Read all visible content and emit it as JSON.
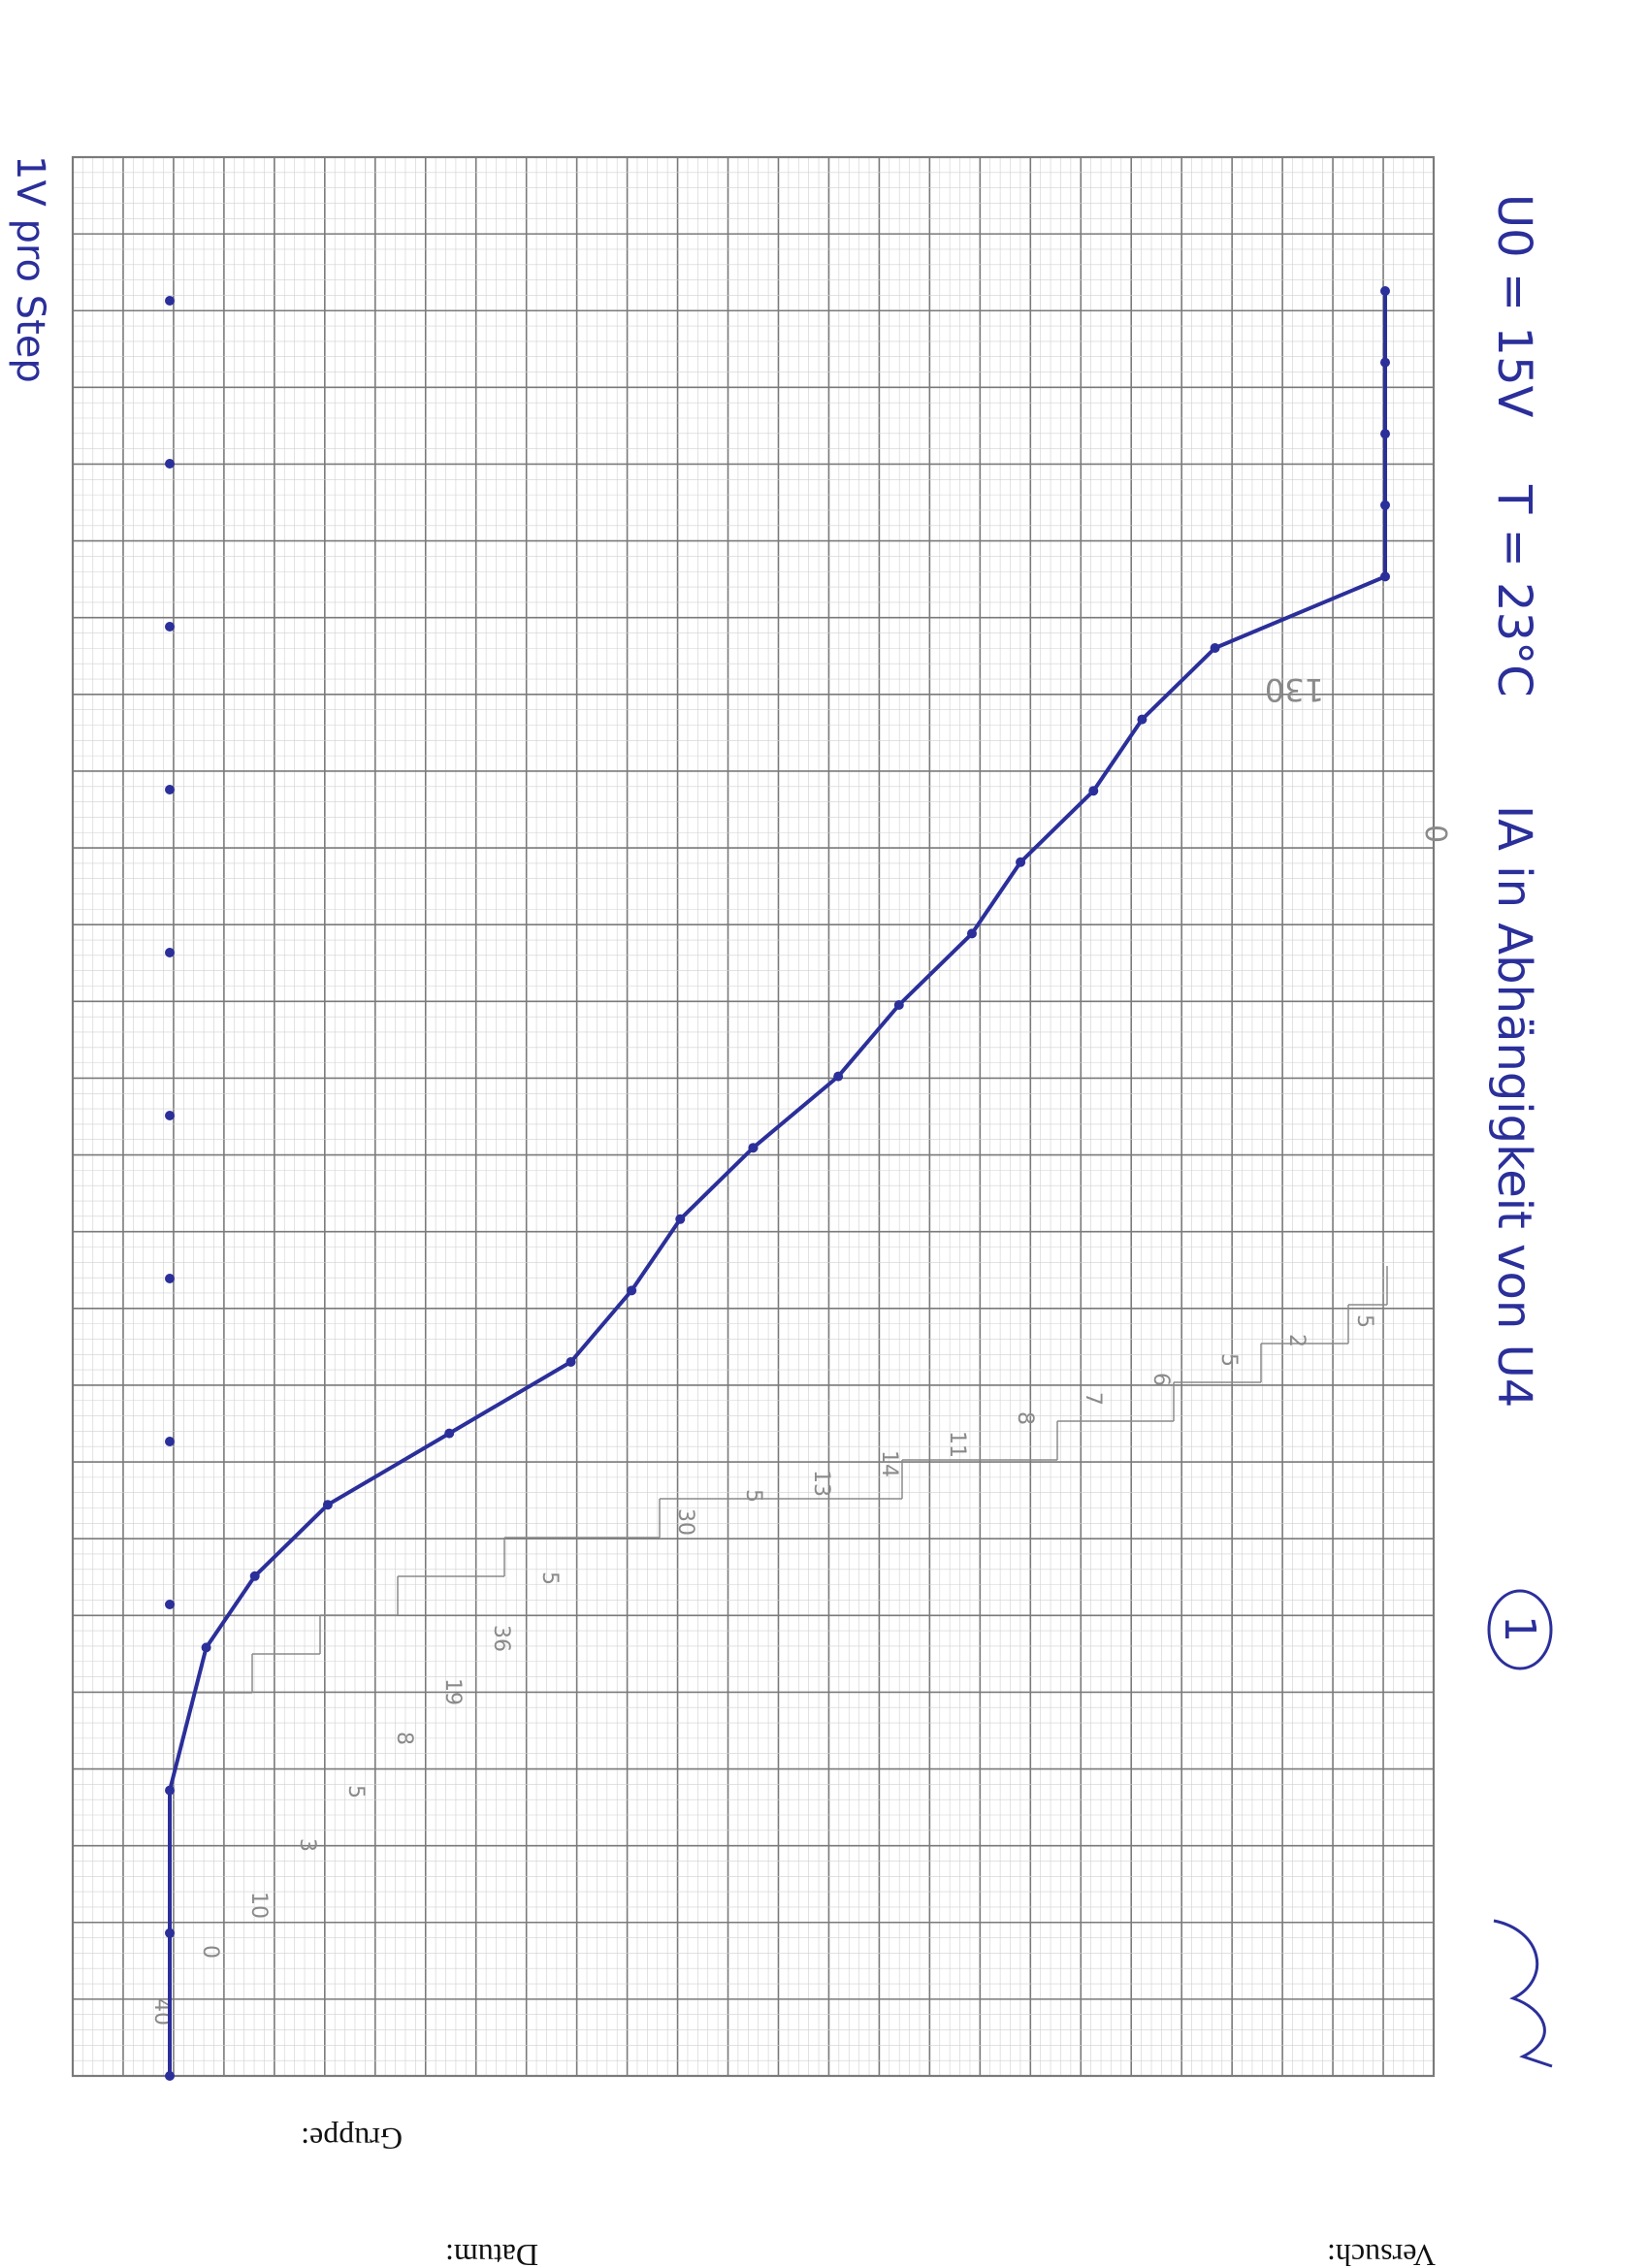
{
  "form": {
    "group_label": "Gruppe:",
    "experiment_label": "Versuch:",
    "date_label": "Datum:"
  },
  "notes": {
    "voltage": "U0 = 15V",
    "temperature": "T = 23°C",
    "title": "IA in Abhängigkeit von U4",
    "circle_number": "1",
    "step": "1V pro Step"
  },
  "pencil_labels": {
    "top": [
      "130",
      "0"
    ],
    "right_steps": [
      "5",
      "2",
      "5",
      "6",
      "7",
      "8",
      "11",
      "14",
      "13",
      "5",
      "30"
    ],
    "left_steps": [
      "5",
      "36",
      "19",
      "8",
      "5",
      "3",
      "10",
      "0",
      "40"
    ]
  },
  "colors": {
    "ink": "#2b2f9a",
    "grid_major": "#7a7a7a",
    "grid_minor": "#d0d0d0",
    "pencil": "#8a8a8a"
  },
  "chart_data": {
    "type": "line",
    "title": "IA in Abhängigkeit von U4",
    "xlabel": "",
    "ylabel": "",
    "series": [
      {
        "x": [
          0,
          2,
          4,
          6,
          7,
          8,
          9,
          10,
          11,
          12,
          13,
          14,
          15,
          16,
          17,
          18,
          19,
          20,
          21,
          22,
          23,
          24,
          25
        ],
        "y": [
          0.0,
          0.0,
          0.0,
          0.03,
          0.07,
          0.13,
          0.23,
          0.33,
          0.38,
          0.42,
          0.48,
          0.55,
          0.6,
          0.66,
          0.7,
          0.76,
          0.8,
          0.86,
          1.0,
          1.0,
          1.0,
          1.0,
          1.0
        ]
      }
    ]
  }
}
